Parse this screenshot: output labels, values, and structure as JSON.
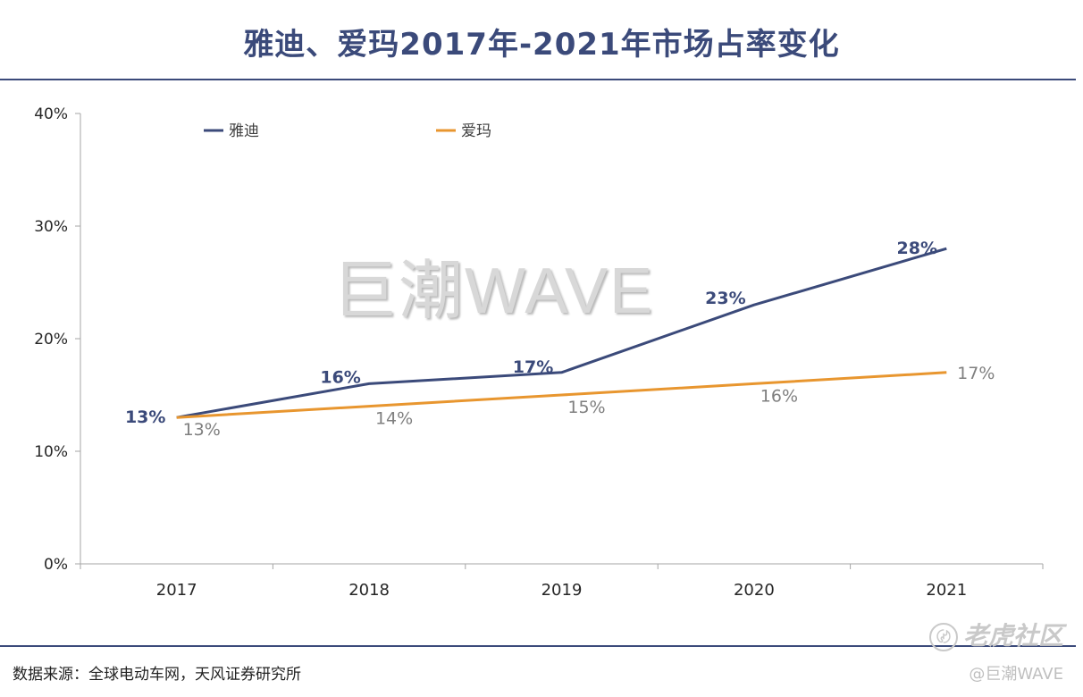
{
  "title": "雅迪、爱玛2017年-2021年市场占率变化",
  "source": "数据来源：全球电动车网，天风证券研究所",
  "watermark": {
    "center": "巨潮WAVE",
    "corner": "老虎社区",
    "handle": "@巨潮WAVE"
  },
  "colors": {
    "brand": "#3b4a7a",
    "yadi": "#3b4a7a",
    "aima": "#e8962f"
  },
  "chart_data": {
    "type": "line",
    "title": "雅迪、爱玛2017年-2021年市场占率变化",
    "xlabel": "",
    "ylabel": "",
    "categories": [
      "2017",
      "2018",
      "2019",
      "2020",
      "2021"
    ],
    "ylim": [
      0,
      40
    ],
    "yticks": [
      0,
      10,
      20,
      30,
      40
    ],
    "ytick_labels": [
      "0%",
      "10%",
      "20%",
      "30%",
      "40%"
    ],
    "legend_position": "top-left",
    "grid": false,
    "series": [
      {
        "name": "雅迪",
        "color": "#3b4a7a",
        "values": [
          13,
          16,
          17,
          23,
          28
        ],
        "labels": [
          "13%",
          "16%",
          "17%",
          "23%",
          "28%"
        ]
      },
      {
        "name": "爱玛",
        "color": "#e8962f",
        "values": [
          13,
          14,
          15,
          16,
          17
        ],
        "labels": [
          "13%",
          "14%",
          "15%",
          "16%",
          "17%"
        ]
      }
    ]
  }
}
